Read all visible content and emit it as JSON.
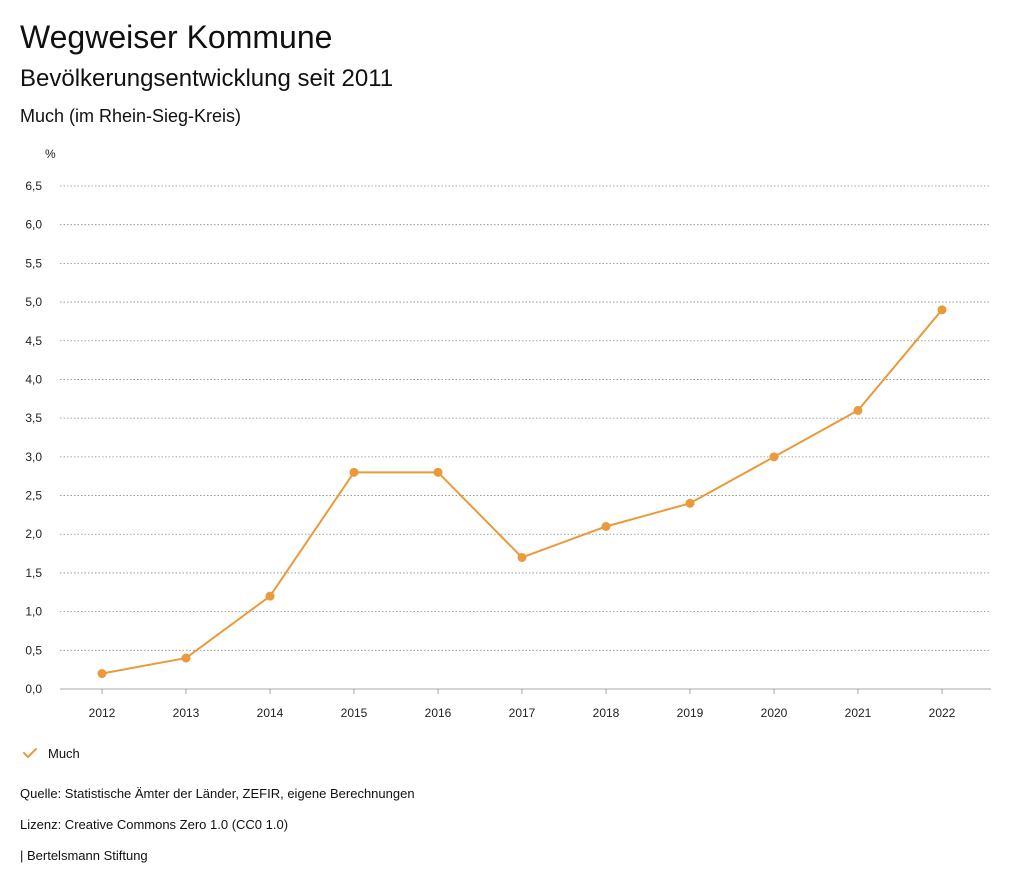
{
  "header": {
    "title": "Wegweiser Kommune",
    "subtitle": "Bevölkerungsentwicklung seit 2011",
    "region": "Much (im Rhein-Sieg-Kreis)"
  },
  "chart_data": {
    "type": "line",
    "ylabel": "%",
    "ylim": [
      0,
      6.5
    ],
    "yticks": [
      0,
      0.5,
      1.0,
      1.5,
      2.0,
      2.5,
      3.0,
      3.5,
      4.0,
      4.5,
      5.0,
      5.5,
      6.0,
      6.5
    ],
    "ytick_labels": [
      "0,0",
      "0,5",
      "1,0",
      "1,5",
      "2,0",
      "2,5",
      "3,0",
      "3,5",
      "4,0",
      "4,5",
      "5,0",
      "5,5",
      "6,0",
      "6,5"
    ],
    "categories": [
      "2012",
      "2013",
      "2014",
      "2015",
      "2016",
      "2017",
      "2018",
      "2019",
      "2020",
      "2021",
      "2022"
    ],
    "series": [
      {
        "name": "Much",
        "color": "#ea9a3a",
        "values": [
          0.2,
          0.4,
          1.2,
          2.8,
          2.8,
          1.7,
          2.1,
          2.4,
          3.0,
          3.6,
          4.9
        ]
      }
    ],
    "grid": true,
    "legend_position": "bottom-left"
  },
  "legend": {
    "label": "Much",
    "color": "#ea9a3a"
  },
  "footer": {
    "source": "Quelle: Statistische Ämter der Länder, ZEFIR, eigene Berechnungen",
    "license": "Lizenz: Creative Commons Zero 1.0 (CC0 1.0)",
    "publisher": "| Bertelsmann Stiftung"
  }
}
